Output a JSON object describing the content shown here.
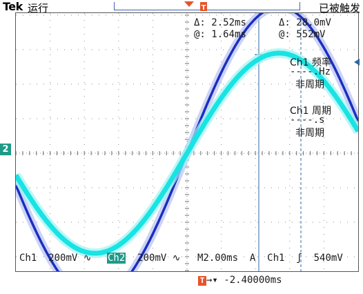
{
  "header": {
    "brand": "Tek",
    "run_state": "运行",
    "acquisition_state": "已被触发"
  },
  "cursor_readout": {
    "time_delta_label": "Δ:",
    "time_delta_value": "2.52ms",
    "time_at_label": "@:",
    "time_at_value": "1.64ms",
    "volt_delta_label": "Δ:",
    "volt_delta_value": "28.0mV",
    "volt_at_label": "@:",
    "volt_at_value": "552mV"
  },
  "measurements": [
    {
      "title": "Ch1 频率",
      "value": "----.Hz",
      "status": "非周期"
    },
    {
      "title": "Ch1 周期",
      "value": "----.s",
      "status": "非周期"
    }
  ],
  "channel_marker": "2",
  "status_bar": {
    "ch1_label": "Ch1",
    "ch1_scale": "200mV",
    "ch1_coupling": "∿",
    "ch2_label": "Ch2",
    "ch2_scale": "200mV",
    "ch2_coupling": "∿",
    "timebase": "M2.00ms",
    "trigger_mode": "A",
    "trigger_source": "Ch1",
    "trigger_slope": "ʃ",
    "trigger_level": "540mV",
    "trigger_position_icon": "T",
    "trigger_offset": "→▾ -2.40000ms"
  },
  "colors": {
    "ch1": "#1a2fbf",
    "ch2": "#19e3e3",
    "background": "#ffffff",
    "grid": "#7a7a7a",
    "trigger": "#e8542a",
    "ch2_badge": "#1f9a88"
  }
}
